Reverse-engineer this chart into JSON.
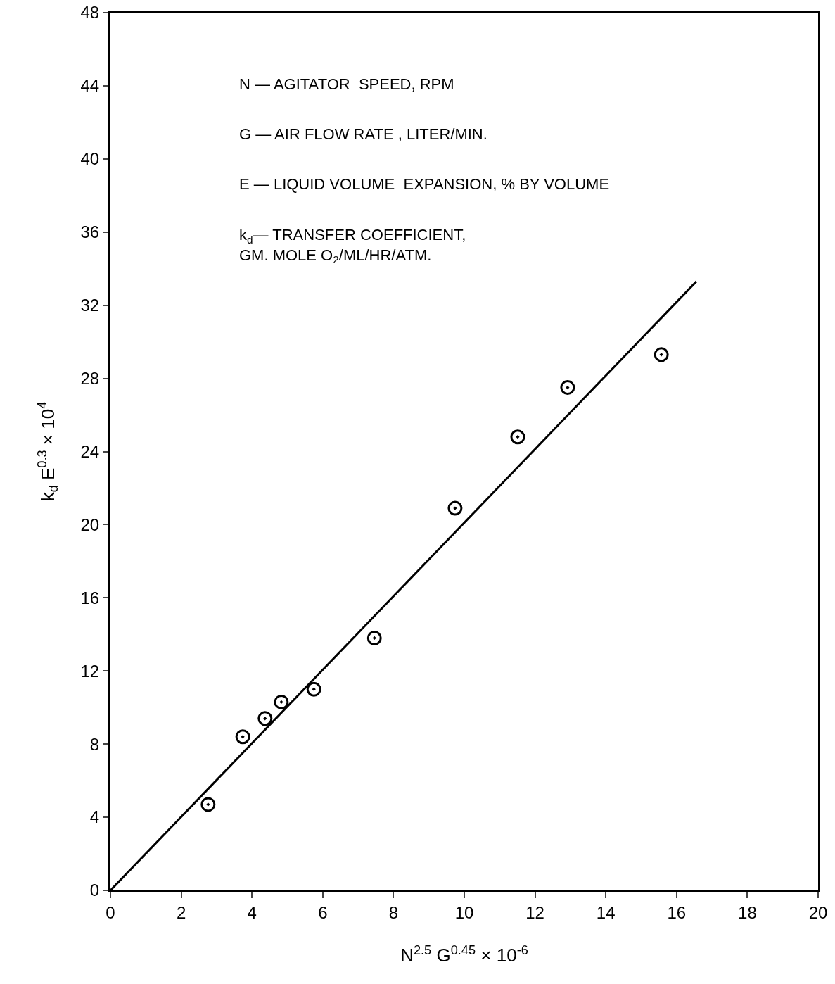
{
  "chart_data": {
    "type": "scatter",
    "xlabel": "N$^{2.5}$ G$^{0.45}$ × 10$^{-6}$",
    "ylabel": "k$_{d}$ E$^{0.3}$ × 10$^{4}$",
    "x": [
      2.76,
      3.74,
      4.37,
      4.83,
      5.75,
      7.46,
      9.74,
      11.51,
      12.92,
      15.57
    ],
    "series": [
      {
        "color": "#000000",
        "marker": "circle",
        "values": [
          4.7,
          8.4,
          9.4,
          10.3,
          11.0,
          13.8,
          20.9,
          24.8,
          27.5,
          29.3
        ]
      },
      {
        "type": "line",
        "color": "#000000",
        "x": [
          0,
          16.56
        ],
        "values": [
          0,
          33.3
        ]
      }
    ],
    "xlim": [
      0,
      20
    ],
    "xticks": [
      0,
      2,
      4,
      6,
      8,
      10,
      12,
      14,
      16,
      18,
      20
    ],
    "ylim": [
      0,
      48
    ],
    "yticks": [
      0,
      4,
      8,
      12,
      16,
      20,
      24,
      28,
      32,
      36,
      40,
      44,
      48
    ],
    "grid": false,
    "annotations": [
      "N — AGITATOR  SPEED, RPM",
      "G — AIR FLOW RATE , LITER/MIN.",
      "E — LIQUID VOLUME  EXPANSION, % BY VOLUME",
      "k$_{d}$— TRANSFER COEFFICIENT,\nGM. MOLE O$_{2}$/ML/HR/ATM."
    ]
  }
}
